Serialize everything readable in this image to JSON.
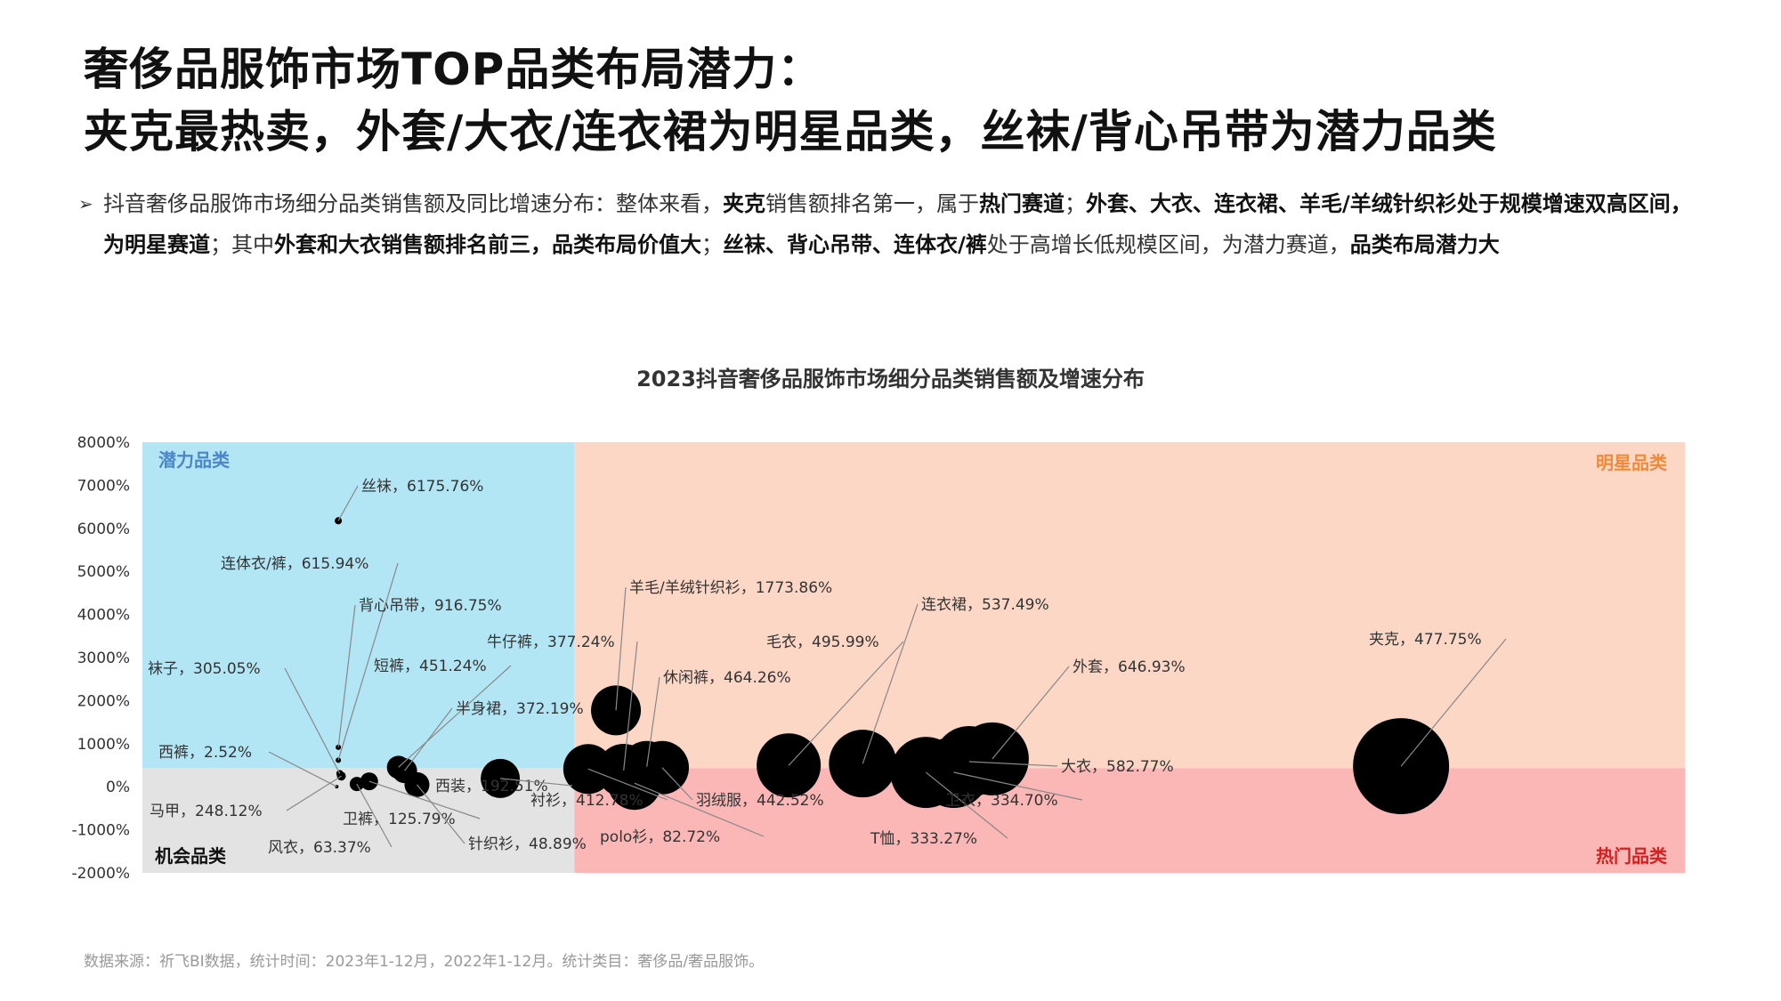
{
  "title_line1": "奢侈品服饰市场TOP品类布局潜力：",
  "title_line2": "夹克最热卖，外套/大衣/连衣裙为明星品类，丝袜/背心吊带为潜力品类",
  "bullet_marker": "➢",
  "bullet_segments": [
    {
      "text": "抖音奢侈品服饰市场细分品类销售额及同比增速分布：整体来看，",
      "bold": false
    },
    {
      "text": "夹克",
      "bold": true
    },
    {
      "text": "销售额排名第一，属于",
      "bold": false
    },
    {
      "text": "热门赛道",
      "bold": true
    },
    {
      "text": "；",
      "bold": false
    },
    {
      "text": "外套、大衣、连衣裙、羊毛/羊绒针织衫处于规模增速双高区间，为明星赛道",
      "bold": true
    },
    {
      "text": "；其中",
      "bold": false
    },
    {
      "text": "外套和大衣销售额排名前三，品类布局价值大",
      "bold": true
    },
    {
      "text": "；",
      "bold": false
    },
    {
      "text": "丝袜、背心吊带、连体衣/裤",
      "bold": true
    },
    {
      "text": "处于高增长低规模区间，为潜力赛道，",
      "bold": false
    },
    {
      "text": "品类布局潜力大",
      "bold": true
    }
  ],
  "source": "数据来源：祈飞BI数据，统计时间：2023年1-12月，2022年1-12月。统计类目：奢侈品/奢品服饰。",
  "colors": {
    "potential": "#B3E6F5",
    "star": "#FCD7C5",
    "hot": "#FBB6B6",
    "opportunity": "#E3E3E3",
    "potential_text": "#4A86C8",
    "star_text": "#EE8A3A",
    "hot_text": "#D42020",
    "opportunity_text": "#111111",
    "bubble": "#000000"
  },
  "chart_data": {
    "type": "scatter",
    "title": "2023抖音奢侈品服饰市场细分品类销售额及增速分布",
    "ylim": [
      -2000,
      8000
    ],
    "yticks": [
      8000,
      7000,
      6000,
      5000,
      4000,
      3000,
      2000,
      1000,
      0,
      -1000,
      -2000
    ],
    "ytick_labels": [
      "8000%",
      "7000%",
      "6000%",
      "5000%",
      "4000%",
      "3000%",
      "2000%",
      "1000%",
      "0%",
      "-1000%",
      "-2000%"
    ],
    "x_axis_shown": false,
    "quadrants": {
      "top_left": "潜力品类",
      "top_right": "明星品类",
      "bottom_right": "热门品类",
      "bottom_left": "机会品类"
    },
    "thresholds_estimated": {
      "x": 0.28,
      "y": 430
    },
    "x_note": "relative sales share, estimated (not labeled)",
    "points": [
      {
        "name": "丝袜",
        "label": "丝袜，6175.76%",
        "x": 0.127,
        "y": 6175.76,
        "size": 4
      },
      {
        "name": "连体衣/裤",
        "label": "连体衣/裤，615.94%",
        "x": 0.127,
        "y": 615.94,
        "size": 3
      },
      {
        "name": "背心吊带",
        "label": "背心吊带，916.75%",
        "x": 0.127,
        "y": 916.75,
        "size": 3
      },
      {
        "name": "袜子",
        "label": "袜子，305.05%",
        "x": 0.128,
        "y": 305.05,
        "size": 4
      },
      {
        "name": "西裤",
        "label": "西裤，2.52%",
        "x": 0.126,
        "y": 2.52,
        "size": 2
      },
      {
        "name": "马甲",
        "label": "马甲，248.12%",
        "x": 0.129,
        "y": 248.12,
        "size": 5
      },
      {
        "name": "风衣",
        "label": "风衣，63.37%",
        "x": 0.139,
        "y": 63.37,
        "size": 8
      },
      {
        "name": "卫裤",
        "label": "卫裤，125.79%",
        "x": 0.147,
        "y": 125.79,
        "size": 10
      },
      {
        "name": "短裤",
        "label": "短裤，451.24%",
        "x": 0.166,
        "y": 451.24,
        "size": 13
      },
      {
        "name": "半身裙",
        "label": "半身裙，372.19%",
        "x": 0.17,
        "y": 372.19,
        "size": 14
      },
      {
        "name": "针织衫",
        "label": "针织衫，48.89%",
        "x": 0.178,
        "y": 48.89,
        "size": 14
      },
      {
        "name": "西装",
        "label": "西装，192.51%",
        "x": 0.232,
        "y": 192.51,
        "size": 22
      },
      {
        "name": "衬衫",
        "label": "衬衫，412.78%",
        "x": 0.289,
        "y": 412.78,
        "size": 28
      },
      {
        "name": "羊毛/羊绒针织衫",
        "label": "羊毛/羊绒针织衫，1773.86%",
        "x": 0.307,
        "y": 1773.86,
        "size": 28
      },
      {
        "name": "牛仔裤",
        "label": "牛仔裤，377.24%",
        "x": 0.312,
        "y": 377.24,
        "size": 30
      },
      {
        "name": "polo衫",
        "label": "polo衫，82.72%",
        "x": 0.319,
        "y": 82.72,
        "size": 30
      },
      {
        "name": "休闲裤",
        "label": "休闲裤，464.26%",
        "x": 0.327,
        "y": 464.26,
        "size": 29
      },
      {
        "name": "羽绒服",
        "label": "羽绒服，442.52%",
        "x": 0.337,
        "y": 442.52,
        "size": 30
      },
      {
        "name": "毛衣",
        "label": "毛衣，495.99%",
        "x": 0.419,
        "y": 495.99,
        "size": 36
      },
      {
        "name": "连衣裙",
        "label": "连衣裙，537.49%",
        "x": 0.467,
        "y": 537.49,
        "size": 38
      },
      {
        "name": "T恤",
        "label": "T恤，333.27%",
        "x": 0.508,
        "y": 333.27,
        "size": 40
      },
      {
        "name": "卫衣",
        "label": "卫衣，334.70%",
        "x": 0.526,
        "y": 334.7,
        "size": 40
      },
      {
        "name": "大衣",
        "label": "大衣，582.77%",
        "x": 0.536,
        "y": 582.77,
        "size": 40
      },
      {
        "name": "外套",
        "label": "外套，646.93%",
        "x": 0.551,
        "y": 646.93,
        "size": 41
      },
      {
        "name": "夹克",
        "label": "夹克，477.75%",
        "x": 0.816,
        "y": 477.75,
        "size": 54
      }
    ]
  }
}
